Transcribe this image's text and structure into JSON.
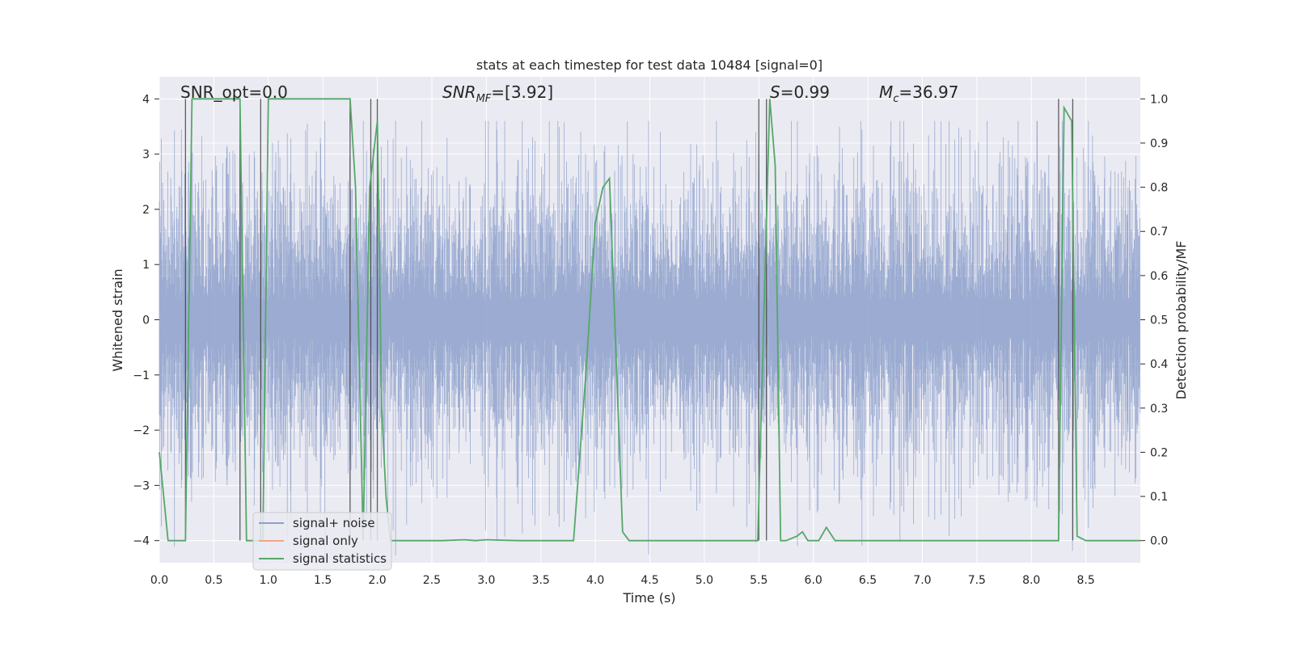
{
  "chart_data": {
    "type": "line",
    "title": "stats at each timestep for test data 10484 [signal=0]",
    "xlabel": "Time (s)",
    "ylabel_left": "Whitened strain",
    "ylabel_right": "Detection probability/MF",
    "xlim": [
      0.0,
      9.0
    ],
    "ylim_left": [
      -4.4,
      4.4
    ],
    "ylim_right": [
      -0.05,
      1.05
    ],
    "x_ticks": [
      "0.0",
      "0.5",
      "1.0",
      "1.5",
      "2.0",
      "2.5",
      "3.0",
      "3.5",
      "4.0",
      "4.5",
      "5.0",
      "5.5",
      "6.0",
      "6.5",
      "7.0",
      "7.5",
      "8.0",
      "8.5"
    ],
    "y_ticks_left": [
      "−4",
      "−3",
      "−2",
      "−1",
      "0",
      "1",
      "2",
      "3",
      "4"
    ],
    "y_ticks_right": [
      "0.0",
      "0.1",
      "0.2",
      "0.3",
      "0.4",
      "0.5",
      "0.6",
      "0.7",
      "0.8",
      "0.9",
      "1.0"
    ],
    "grid": true,
    "legend_position": "lower-left",
    "annotations": {
      "snr_opt": "SNR_opt=0.0",
      "snr_mf_base": "SNR",
      "snr_mf_sub": "MF",
      "snr_mf_value": "=[3.92]",
      "s_label": "S",
      "s_value": "=0.99",
      "mc_label": "M",
      "mc_sub": "c",
      "mc_value": "=36.97"
    },
    "series": [
      {
        "name": "signal+ noise",
        "color": "#8da0cb",
        "description": "whitened strain noise, amplitude range approx -3.6 to 3.6"
      },
      {
        "name": "signal only",
        "color": "#f4a582",
        "values": []
      },
      {
        "name": "signal statistics",
        "color": "#55a868",
        "x": [
          0.0,
          0.08,
          0.12,
          0.17,
          0.24,
          0.3,
          0.74,
          0.8,
          0.95,
          1.0,
          1.75,
          1.8,
          1.87,
          1.93,
          2.0,
          2.04,
          2.08,
          2.12,
          2.2,
          2.6,
          2.8,
          2.9,
          3.0,
          3.3,
          3.8,
          3.86,
          3.92,
          4.0,
          4.07,
          4.13,
          4.25,
          4.31,
          4.4,
          5.0,
          5.49,
          5.6,
          5.65,
          5.7,
          5.75,
          5.85,
          5.9,
          5.95,
          6.05,
          6.12,
          6.2,
          6.5,
          7.0,
          7.5,
          8.0,
          8.25,
          8.3,
          8.37,
          8.42,
          8.5,
          9.0
        ],
        "values": [
          0.2,
          0.0,
          0.0,
          0.0,
          0.0,
          1.0,
          1.0,
          0.0,
          0.0,
          1.0,
          1.0,
          0.8,
          0.0,
          0.8,
          0.95,
          0.3,
          0.1,
          0.0,
          0.0,
          0.0,
          0.002,
          0.0,
          0.002,
          0.0,
          0.0,
          0.2,
          0.4,
          0.72,
          0.8,
          0.82,
          0.02,
          0.0,
          0.0,
          0.0,
          0.0,
          1.0,
          0.85,
          0.0,
          0.0,
          0.01,
          0.02,
          0.0,
          0.0,
          0.03,
          0.0,
          0.0,
          0.0,
          0.0,
          0.0,
          0.0,
          0.98,
          0.95,
          0.01,
          0.0,
          0.0
        ]
      }
    ],
    "vertical_lines_x": [
      0.24,
      0.74,
      0.93,
      1.75,
      1.94,
      2.0,
      5.5,
      5.57,
      8.25,
      8.38
    ]
  }
}
